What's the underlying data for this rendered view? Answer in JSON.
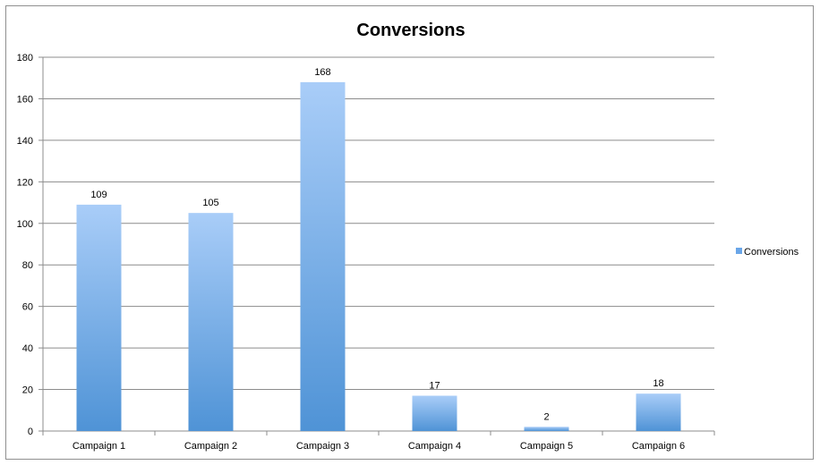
{
  "chart_data": {
    "type": "bar",
    "title": "Conversions",
    "xlabel": "",
    "ylabel": "",
    "categories": [
      "Campaign 1",
      "Campaign 2",
      "Campaign 3",
      "Campaign 4",
      "Campaign 5",
      "Campaign 6"
    ],
    "series": [
      {
        "name": "Conversions",
        "values": [
          109,
          105,
          168,
          17,
          2,
          18
        ]
      }
    ],
    "ylim": [
      0,
      180
    ],
    "yticks": [
      "0",
      "20",
      "40",
      "60",
      "80",
      "100",
      "120",
      "140",
      "160",
      "180"
    ],
    "grid": true,
    "data_labels": true,
    "legend_position": "right",
    "colors": {
      "bar_top": "#a9cdf8",
      "bar_bottom": "#4f93d6",
      "grid": "#8c8c8c",
      "legend_swatch": "#6aa6e8"
    }
  }
}
